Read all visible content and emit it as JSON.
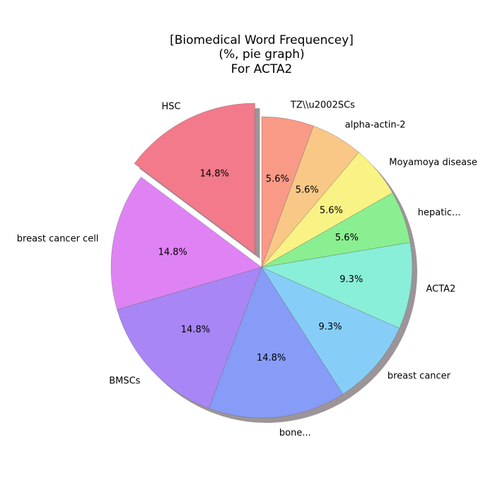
{
  "chart_data": {
    "type": "pie",
    "title_lines": [
      "[Biomedical Word Frequencey]",
      "(%, pie graph)",
      "For ACTA2"
    ],
    "slices": [
      {
        "label": "HSC",
        "value": 14.8,
        "pct_label": "14.8%",
        "color": "#f27a8a",
        "exploded": true
      },
      {
        "label": "breast cancer cell",
        "value": 14.8,
        "pct_label": "14.8%",
        "color": "#df83f4",
        "exploded": false
      },
      {
        "label": "BMSCs",
        "value": 14.8,
        "pct_label": "14.8%",
        "color": "#a886f5",
        "exploded": false
      },
      {
        "label": "bone...",
        "value": 14.8,
        "pct_label": "14.8%",
        "color": "#869cf6",
        "exploded": false
      },
      {
        "label": "breast cancer",
        "value": 9.3,
        "pct_label": "9.3%",
        "color": "#86cef8",
        "exploded": false
      },
      {
        "label": "ACTA2",
        "value": 9.3,
        "pct_label": "9.3%",
        "color": "#89efd9",
        "exploded": false
      },
      {
        "label": "hepatic...",
        "value": 5.6,
        "pct_label": "5.6%",
        "color": "#8aef90",
        "exploded": false
      },
      {
        "label": "Moyamoya disease",
        "value": 5.6,
        "pct_label": "5.6%",
        "color": "#f9f385",
        "exploded": false
      },
      {
        "label": "alpha-actin-2",
        "value": 5.6,
        "pct_label": "5.6%",
        "color": "#f9c886",
        "exploded": false
      },
      {
        "label": "TZ\\\\u2002SCs",
        "value": 5.6,
        "pct_label": "5.6%",
        "color": "#f99a87",
        "exploded": false
      }
    ],
    "start_angle_deg": 90,
    "direction": "counterclockwise",
    "shadow": true
  }
}
